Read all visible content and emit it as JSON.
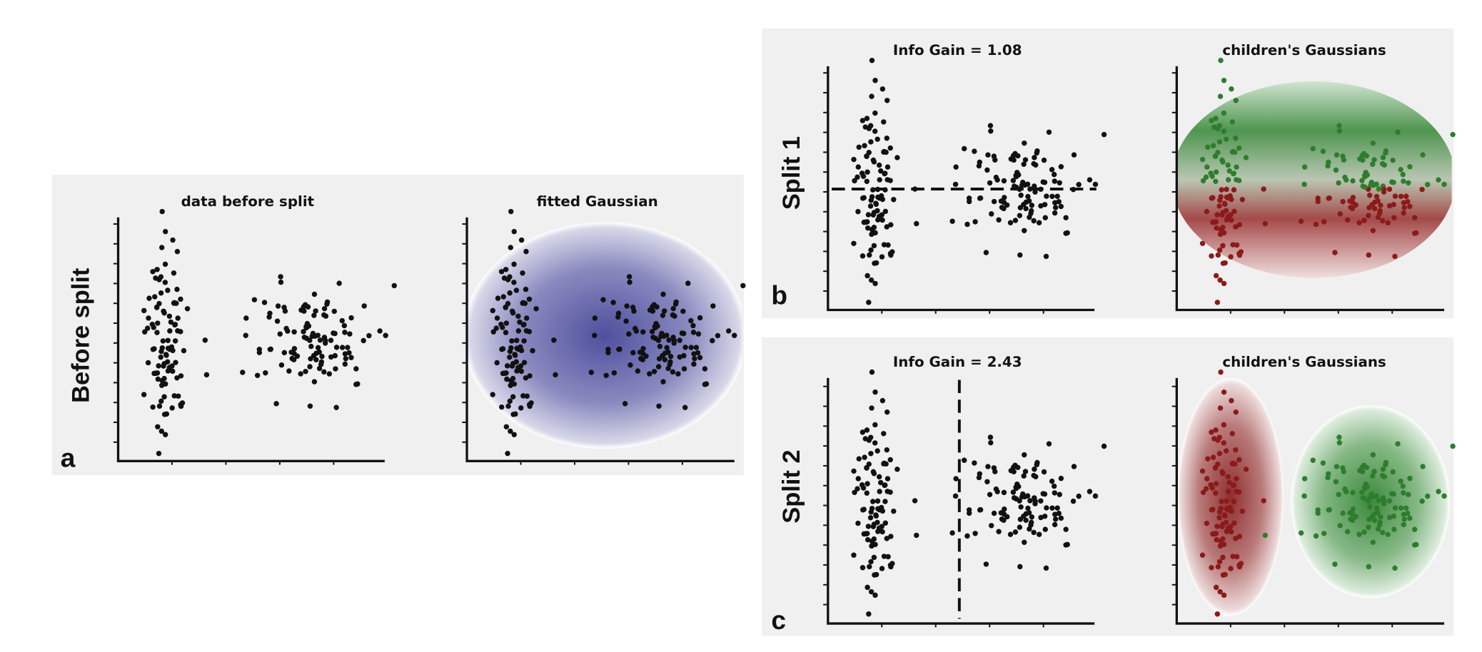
{
  "panels": [
    {
      "letter": "a",
      "row_label": "Before split",
      "plots": [
        {
          "title": "data before split"
        },
        {
          "title": "fitted Gaussian"
        }
      ]
    },
    {
      "letter": "b",
      "row_label": "Split 1",
      "plots": [
        {
          "title": "Info Gain = 1.08"
        },
        {
          "title": "children's Gaussians"
        }
      ]
    },
    {
      "letter": "c",
      "row_label": "Split 2",
      "plots": [
        {
          "title": "Info Gain = 2.43"
        },
        {
          "title": "children's Gaussians"
        }
      ]
    }
  ]
}
